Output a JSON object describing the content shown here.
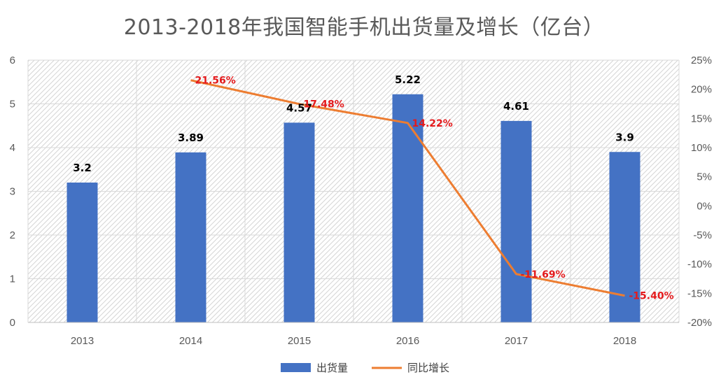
{
  "chart_data": {
    "type": "bar",
    "title": "2013-2018年我国智能手机出货量及增长（亿台）",
    "categories": [
      "2013",
      "2014",
      "2015",
      "2016",
      "2017",
      "2018"
    ],
    "series": [
      {
        "name": "出货量",
        "type": "bar",
        "axis": "left",
        "values": [
          3.2,
          3.89,
          4.57,
          5.22,
          4.61,
          3.9
        ],
        "labels": [
          "3.2",
          "3.89",
          "4.57",
          "5.22",
          "4.61",
          "3.9"
        ],
        "color": "#4472c4"
      },
      {
        "name": "同比增长",
        "type": "line",
        "axis": "right",
        "values": [
          null,
          21.56,
          17.48,
          14.22,
          -11.69,
          -15.4
        ],
        "labels": [
          "",
          "21.56%",
          "17.48%",
          "14.22%",
          "-11.69%",
          "-15.40%"
        ],
        "color": "#ed7d31",
        "label_color": "#e41a1c"
      }
    ],
    "y_left": {
      "ylim": [
        0,
        6
      ],
      "ticks": [
        "0",
        "1",
        "2",
        "3",
        "4",
        "5",
        "6"
      ]
    },
    "y_right": {
      "ylim": [
        -20,
        25
      ],
      "ticks": [
        "-20%",
        "-15%",
        "-10%",
        "-5%",
        "0%",
        "5%",
        "10%",
        "15%",
        "20%",
        "25%"
      ]
    },
    "grid": true,
    "plot_background": "hatched",
    "legend_position": "bottom"
  }
}
